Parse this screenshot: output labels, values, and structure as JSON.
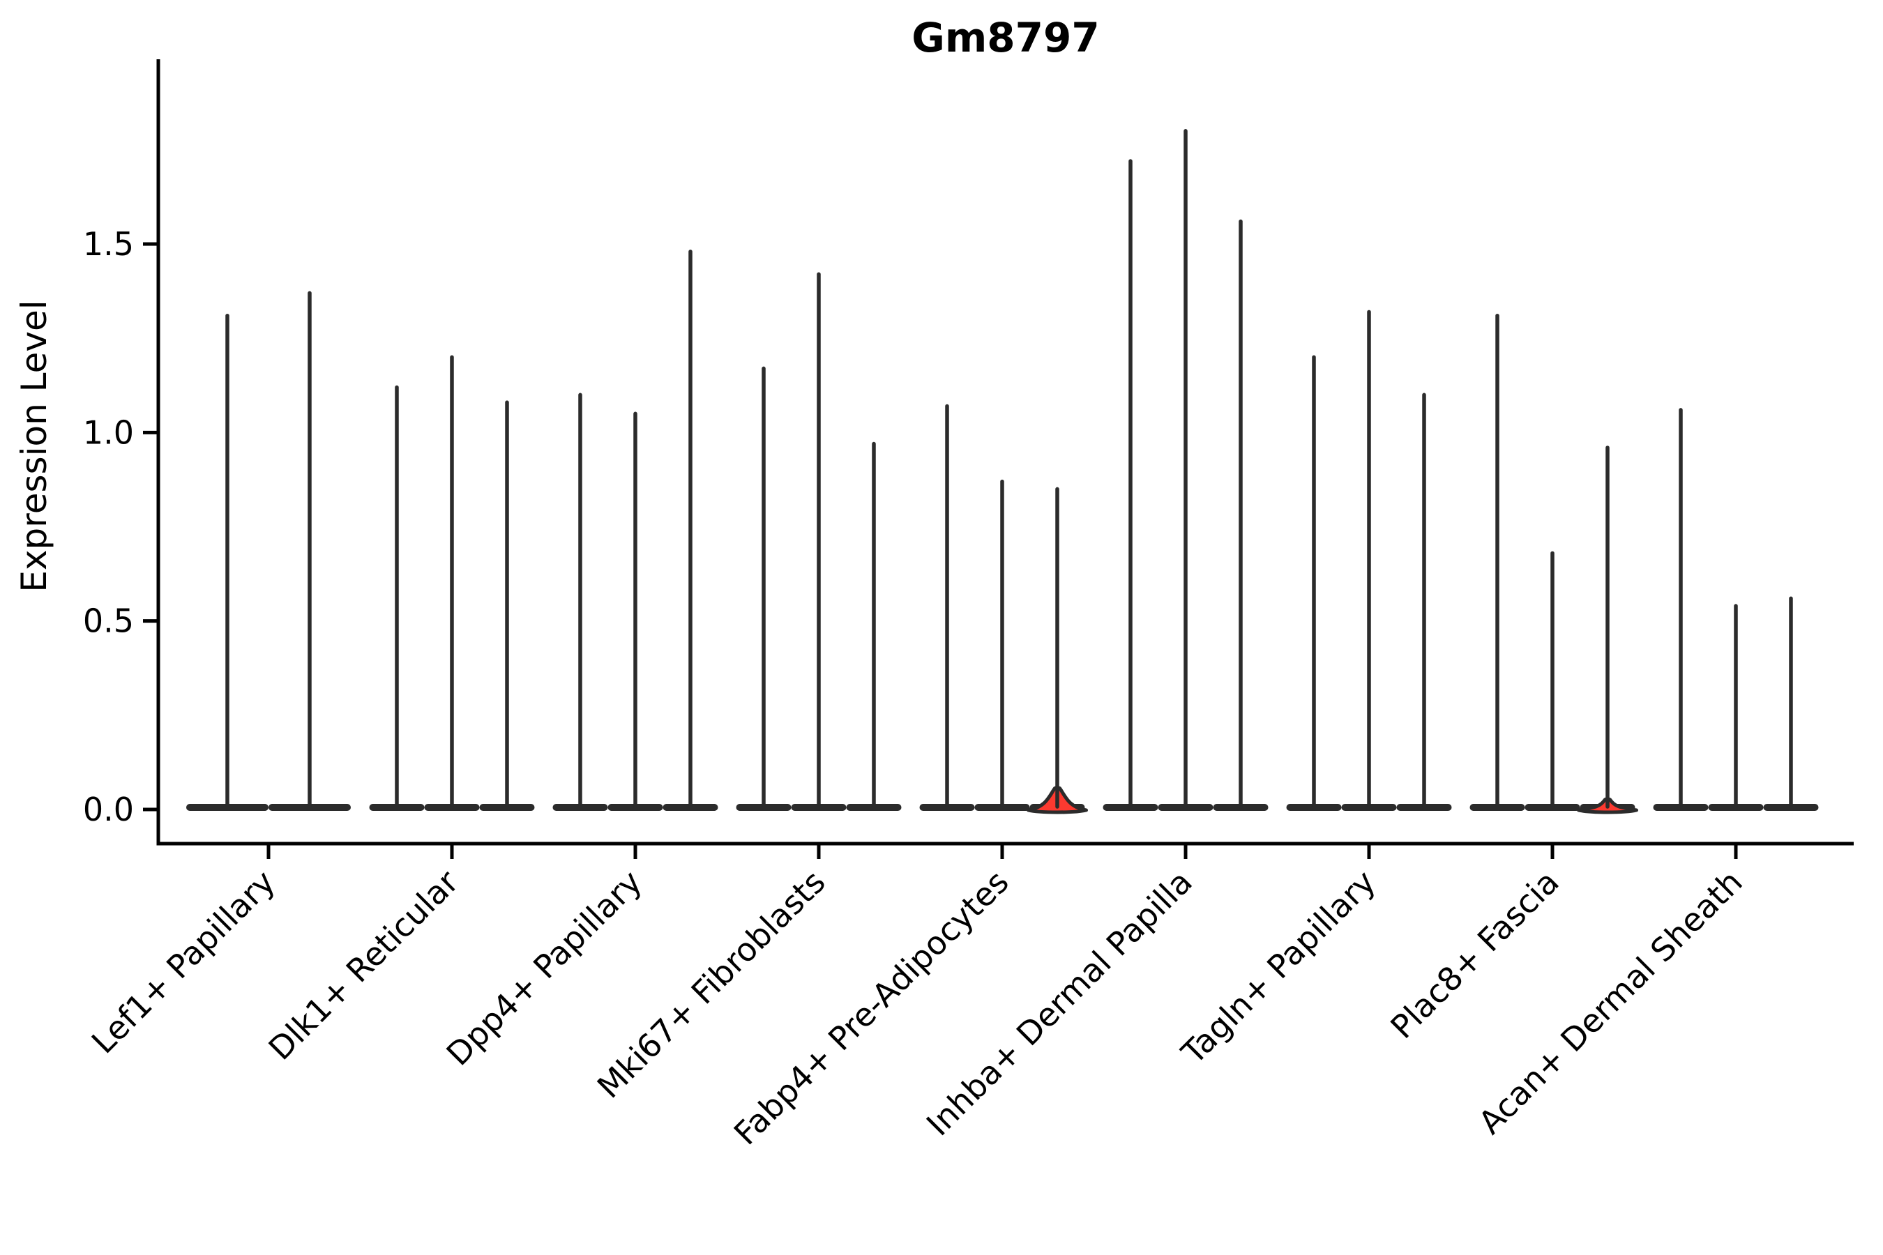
{
  "chart_data": {
    "type": "violin",
    "title": "Gm8797",
    "xlabel": "",
    "ylabel": "Expression Level",
    "yticks": [
      0.0,
      0.5,
      1.0,
      1.5
    ],
    "ytick_labels": [
      "0.0",
      "0.5",
      "1.0",
      "1.5"
    ],
    "ylim": [
      -0.09,
      1.99
    ],
    "grid": false,
    "legend": "none",
    "x_tick_rotation_degrees": 45,
    "colors": {
      "violin_fill": "#fc3a30",
      "violin_edge": "#2b2b2b",
      "axis": "#000000",
      "background": "#ffffff"
    },
    "groups": [
      {
        "label": "Lef1+ Papillary",
        "violins": [
          {
            "max": 1.31
          },
          {
            "max": 1.37
          }
        ]
      },
      {
        "label": "Dlk1+ Reticular",
        "violins": [
          {
            "max": 1.12
          },
          {
            "max": 1.2
          },
          {
            "max": 1.08
          }
        ]
      },
      {
        "label": "Dpp4+ Papillary",
        "violins": [
          {
            "max": 1.1
          },
          {
            "max": 1.05
          },
          {
            "max": 1.48
          }
        ]
      },
      {
        "label": "Mki67+ Fibroblasts",
        "violins": [
          {
            "max": 1.17
          },
          {
            "max": 1.42
          },
          {
            "max": 0.97
          }
        ]
      },
      {
        "label": "Fabp4+ Pre-Adipocytes",
        "violins": [
          {
            "max": 1.07
          },
          {
            "max": 0.87
          },
          {
            "max": 0.85,
            "base_bulge": 0.06
          }
        ]
      },
      {
        "label": "Inhba+ Dermal Papilla",
        "violins": [
          {
            "max": 1.72
          },
          {
            "max": 1.8
          },
          {
            "max": 1.56
          }
        ]
      },
      {
        "label": "Tagln+ Papillary",
        "violins": [
          {
            "max": 1.2
          },
          {
            "max": 1.32
          },
          {
            "max": 1.1
          }
        ]
      },
      {
        "label": "Plac8+ Fascia",
        "violins": [
          {
            "max": 1.31
          },
          {
            "max": 0.68
          },
          {
            "max": 0.96,
            "base_bulge": 0.03
          }
        ]
      },
      {
        "label": "Acan+ Dermal Sheath",
        "violins": [
          {
            "max": 1.06
          },
          {
            "max": 0.54
          },
          {
            "max": 0.56
          }
        ]
      }
    ]
  }
}
